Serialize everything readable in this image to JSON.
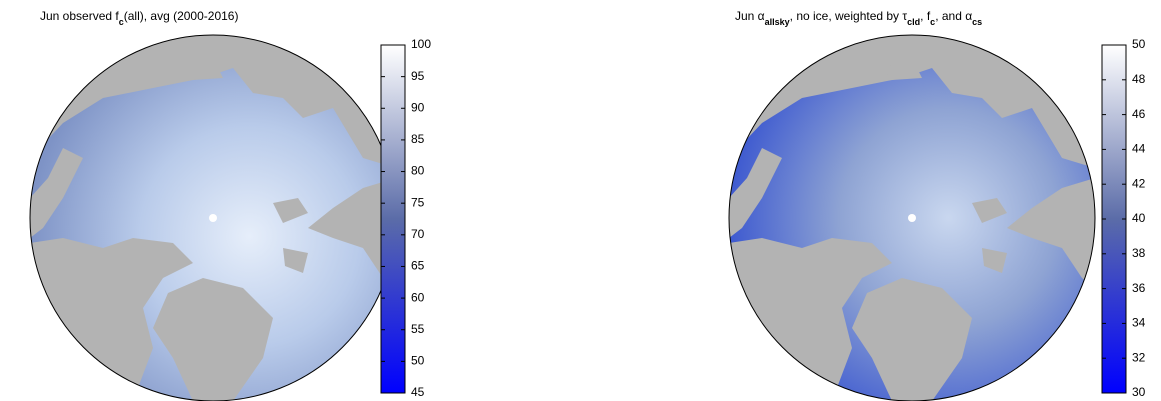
{
  "panels": [
    {
      "title_parts": [
        {
          "text": "Jun observed f",
          "sub": false
        },
        {
          "text": "c",
          "sub": true
        },
        {
          "text": "(all), avg (2000-2016)",
          "sub": false
        }
      ],
      "colorbar": {
        "lim": [
          45,
          100
        ],
        "ticks": [
          45,
          50,
          55,
          60,
          65,
          70,
          75,
          80,
          85,
          90,
          95,
          100
        ],
        "colors": [
          "#0000ff",
          "#5b6ca8",
          "#ffffff"
        ]
      }
    },
    {
      "title_parts": [
        {
          "text": "Jun α",
          "sub": false
        },
        {
          "text": "allsky",
          "sub": true
        },
        {
          "text": ", no ice, weighted by τ",
          "sub": false
        },
        {
          "text": "cld",
          "sub": true
        },
        {
          "text": ", f",
          "sub": false
        },
        {
          "text": "c",
          "sub": true
        },
        {
          "text": ", and α",
          "sub": false
        },
        {
          "text": "cs",
          "sub": true
        }
      ],
      "colorbar": {
        "lim": [
          30,
          50
        ],
        "ticks": [
          30,
          32,
          34,
          36,
          38,
          40,
          42,
          44,
          46,
          48,
          50
        ],
        "colors": [
          "#0000ff",
          "#5b6ca8",
          "#ffffff"
        ]
      }
    }
  ]
}
